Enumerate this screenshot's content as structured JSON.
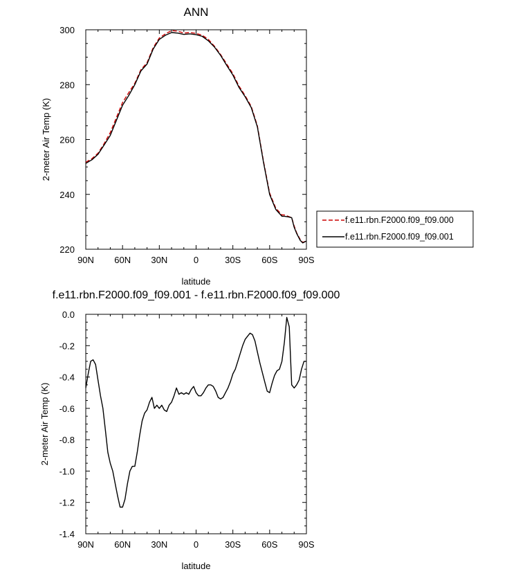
{
  "chart_data": [
    {
      "type": "line",
      "title": "ANN",
      "xlabel": "latitude",
      "ylabel": "2-meter Air Temp (K)",
      "x_direction": "north-to-south",
      "xlim": [
        90,
        -90
      ],
      "ylim": [
        220,
        300
      ],
      "x_ticks": [
        {
          "value": 90,
          "label": "90N"
        },
        {
          "value": 60,
          "label": "60N"
        },
        {
          "value": 30,
          "label": "30N"
        },
        {
          "value": 0,
          "label": "0"
        },
        {
          "value": -30,
          "label": "30S"
        },
        {
          "value": -60,
          "label": "60S"
        },
        {
          "value": -90,
          "label": "90S"
        }
      ],
      "y_ticks": [
        {
          "value": 300,
          "label": "300"
        },
        {
          "value": 280,
          "label": "280"
        },
        {
          "value": 260,
          "label": "260"
        },
        {
          "value": 240,
          "label": "240"
        },
        {
          "value": 220,
          "label": "220"
        }
      ],
      "grid": false,
      "legend_position": "right",
      "series": [
        {
          "name": "f.e11.rbn.F2000.f09_f09.000",
          "color": "#cc0000",
          "dash": "dashed",
          "x": [
            90,
            85,
            80,
            75,
            70,
            65,
            60,
            55,
            50,
            45,
            40,
            35,
            30,
            25,
            20,
            15,
            10,
            5,
            0,
            -5,
            -10,
            -15,
            -20,
            -25,
            -30,
            -35,
            -40,
            -45,
            -50,
            -55,
            -60,
            -65,
            -70,
            -72,
            -75,
            -78,
            -80,
            -82,
            -85,
            -87,
            -90
          ],
          "values": [
            251.7,
            253.0,
            255.0,
            258.5,
            262.5,
            268.0,
            273.5,
            277.0,
            280.5,
            285.5,
            288.0,
            293.5,
            297.0,
            298.5,
            299.7,
            299.5,
            298.8,
            299.0,
            298.7,
            298.0,
            296.5,
            294.0,
            291.0,
            287.5,
            284.0,
            279.5,
            276.0,
            272.0,
            265.0,
            252.0,
            240.5,
            235.0,
            232.5,
            232.5,
            232.0,
            231.5,
            228.5,
            226.0,
            223.5,
            222.5,
            223.0
          ]
        },
        {
          "name": "f.e11.rbn.F2000.f09_f09.001",
          "color": "#000000",
          "dash": "solid",
          "x": [
            90,
            85,
            80,
            75,
            70,
            65,
            60,
            55,
            50,
            45,
            40,
            35,
            30,
            25,
            20,
            15,
            10,
            5,
            0,
            -5,
            -10,
            -15,
            -20,
            -25,
            -30,
            -35,
            -40,
            -45,
            -50,
            -55,
            -60,
            -65,
            -70,
            -72,
            -75,
            -78,
            -80,
            -82,
            -85,
            -87,
            -90
          ],
          "values": [
            251.3,
            252.6,
            254.6,
            258.0,
            261.5,
            267.0,
            272.5,
            276.0,
            280.0,
            285.0,
            287.5,
            293.0,
            296.5,
            298.0,
            299.0,
            298.8,
            298.3,
            298.5,
            298.2,
            297.6,
            296.0,
            293.7,
            290.7,
            287.0,
            283.5,
            279.0,
            275.6,
            271.6,
            264.6,
            251.6,
            240.0,
            234.5,
            232.0,
            232.0,
            231.8,
            231.5,
            228.0,
            225.8,
            223.2,
            222.3,
            223.0
          ]
        }
      ]
    },
    {
      "type": "line",
      "title": "f.e11.rbn.F2000.f09_f09.001 - f.e11.rbn.F2000.f09_f09.000",
      "xlabel": "latitude",
      "ylabel": "2-meter Air Temp (K)",
      "x_direction": "north-to-south",
      "xlim": [
        90,
        -90
      ],
      "ylim": [
        -1.4,
        0.0
      ],
      "x_ticks": [
        {
          "value": 90,
          "label": "90N"
        },
        {
          "value": 60,
          "label": "60N"
        },
        {
          "value": 30,
          "label": "30N"
        },
        {
          "value": 0,
          "label": "0"
        },
        {
          "value": -30,
          "label": "30S"
        },
        {
          "value": -60,
          "label": "60S"
        },
        {
          "value": -90,
          "label": "90S"
        }
      ],
      "y_ticks": [
        {
          "value": 0.0,
          "label": "0.0"
        },
        {
          "value": -0.2,
          "label": "-0.2"
        },
        {
          "value": -0.4,
          "label": "-0.4"
        },
        {
          "value": -0.6,
          "label": "-0.6"
        },
        {
          "value": -0.8,
          "label": "-0.8"
        },
        {
          "value": -1.0,
          "label": "-1.0"
        },
        {
          "value": -1.2,
          "label": "-1.2"
        },
        {
          "value": -1.4,
          "label": "-1.4"
        }
      ],
      "grid": false,
      "series": [
        {
          "color": "#000000",
          "dash": "solid",
          "x": [
            90,
            88,
            86,
            84,
            82,
            80,
            78,
            76,
            74,
            72,
            70,
            68,
            66,
            64,
            62,
            60,
            58,
            56,
            54,
            52,
            50,
            48,
            46,
            44,
            42,
            40,
            38,
            36,
            34,
            32,
            30,
            28,
            26,
            24,
            22,
            20,
            18,
            16,
            14,
            12,
            10,
            8,
            6,
            4,
            2,
            0,
            -2,
            -4,
            -6,
            -8,
            -10,
            -12,
            -14,
            -16,
            -18,
            -20,
            -22,
            -24,
            -26,
            -28,
            -30,
            -32,
            -34,
            -36,
            -38,
            -40,
            -42,
            -44,
            -46,
            -48,
            -50,
            -52,
            -54,
            -56,
            -58,
            -60,
            -62,
            -64,
            -66,
            -68,
            -70,
            -72,
            -74,
            -76,
            -78,
            -80,
            -82,
            -84,
            -86,
            -88,
            -90
          ],
          "values": [
            -0.47,
            -0.38,
            -0.3,
            -0.29,
            -0.32,
            -0.42,
            -0.52,
            -0.6,
            -0.74,
            -0.88,
            -0.95,
            -1.0,
            -1.08,
            -1.16,
            -1.23,
            -1.23,
            -1.18,
            -1.08,
            -1.0,
            -0.97,
            -0.97,
            -0.88,
            -0.77,
            -0.68,
            -0.63,
            -0.61,
            -0.56,
            -0.53,
            -0.6,
            -0.58,
            -0.6,
            -0.58,
            -0.61,
            -0.62,
            -0.58,
            -0.56,
            -0.52,
            -0.47,
            -0.51,
            -0.5,
            -0.51,
            -0.5,
            -0.51,
            -0.48,
            -0.46,
            -0.5,
            -0.52,
            -0.52,
            -0.5,
            -0.47,
            -0.45,
            -0.45,
            -0.46,
            -0.49,
            -0.53,
            -0.54,
            -0.53,
            -0.5,
            -0.47,
            -0.43,
            -0.38,
            -0.35,
            -0.3,
            -0.25,
            -0.2,
            -0.16,
            -0.14,
            -0.12,
            -0.13,
            -0.17,
            -0.24,
            -0.31,
            -0.37,
            -0.43,
            -0.49,
            -0.5,
            -0.44,
            -0.39,
            -0.36,
            -0.35,
            -0.3,
            -0.18,
            -0.02,
            -0.08,
            -0.45,
            -0.47,
            -0.45,
            -0.42,
            -0.35,
            -0.3,
            -0.3
          ]
        }
      ]
    }
  ]
}
